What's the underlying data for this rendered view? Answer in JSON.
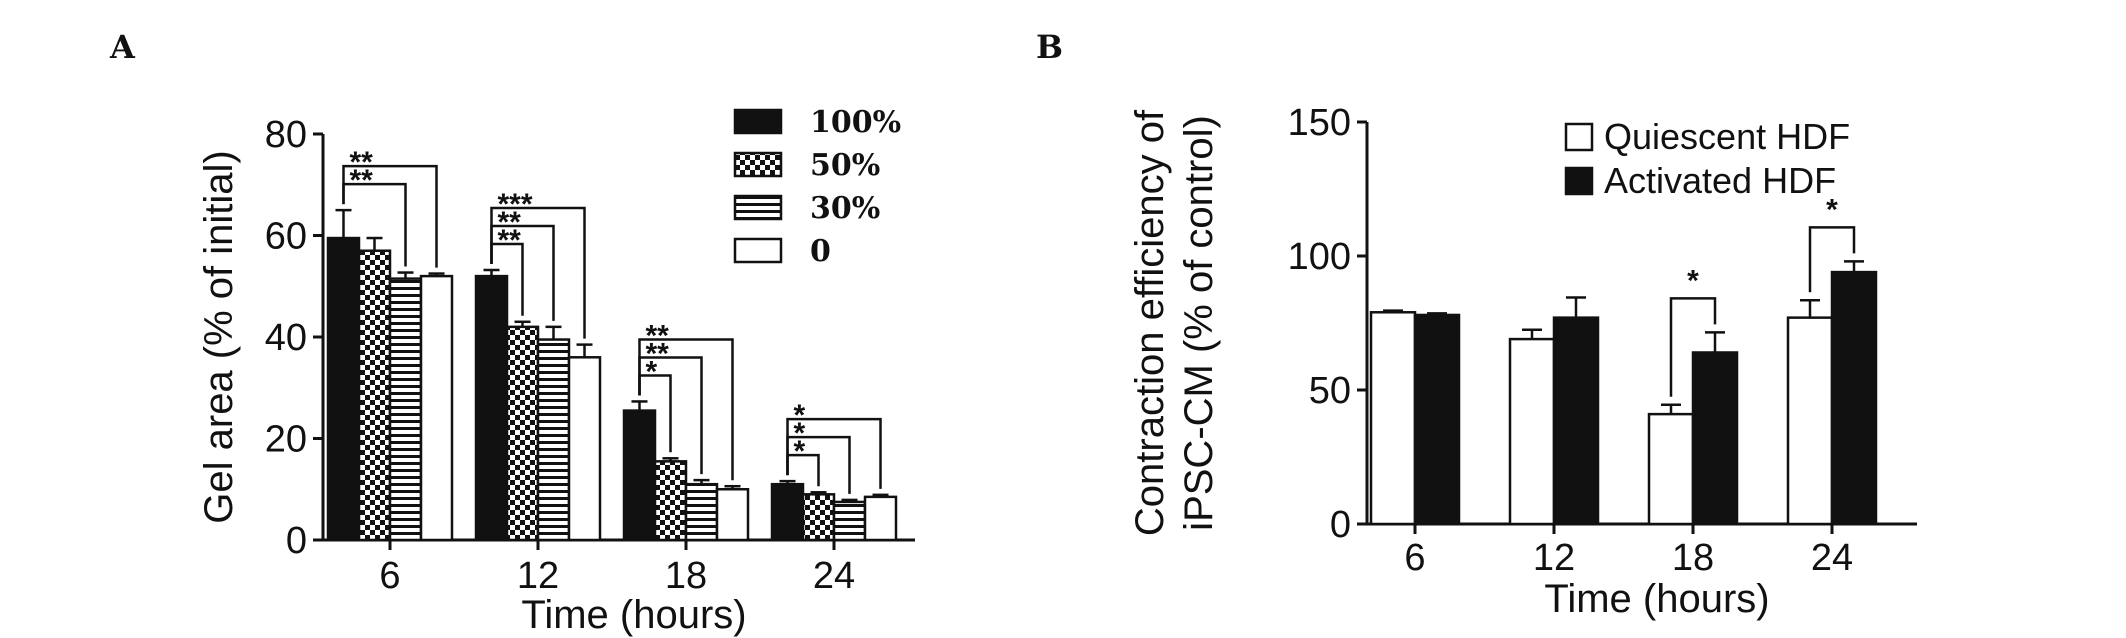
{
  "chart_data": [
    {
      "panel": "A",
      "type": "bar",
      "xlabel": "Time (hours)",
      "ylabel": "Gel area (% of initial)",
      "ylim": [
        0,
        80
      ],
      "yticks": [
        0,
        20,
        40,
        60,
        80
      ],
      "categories": [
        "6",
        "12",
        "18",
        "24"
      ],
      "series": [
        {
          "name": "100%",
          "values": [
            59.5,
            52,
            25.5,
            11
          ],
          "errors": [
            5.5,
            1.2,
            1.8,
            0.6
          ],
          "pattern": "solid-black"
        },
        {
          "name": "50%",
          "values": [
            57,
            42,
            15.5,
            9
          ],
          "errors": [
            2.5,
            1.0,
            0.6,
            0.4
          ],
          "pattern": "checker"
        },
        {
          "name": "30%",
          "values": [
            51.5,
            39.5,
            11,
            7.5
          ],
          "errors": [
            1.2,
            2.5,
            0.8,
            0.4
          ],
          "pattern": "horizontal-stripes"
        },
        {
          "name": "0",
          "values": [
            52,
            36,
            10,
            8.5
          ],
          "errors": [
            0.5,
            2.5,
            0.6,
            0.4
          ],
          "pattern": "white"
        }
      ],
      "significance": [
        {
          "category": "6",
          "from": 0,
          "to": 3,
          "label": "**",
          "level": 1
        },
        {
          "category": "6",
          "from": 0,
          "to": 2,
          "label": "**",
          "level": 0
        },
        {
          "category": "12",
          "from": 0,
          "to": 3,
          "label": "***",
          "level": 2
        },
        {
          "category": "12",
          "from": 0,
          "to": 2,
          "label": "**",
          "level": 1
        },
        {
          "category": "12",
          "from": 0,
          "to": 1,
          "label": "**",
          "level": 0
        },
        {
          "category": "18",
          "from": 0,
          "to": 3,
          "label": "**",
          "level": 2
        },
        {
          "category": "18",
          "from": 0,
          "to": 2,
          "label": "**",
          "level": 1
        },
        {
          "category": "18",
          "from": 0,
          "to": 1,
          "label": "*",
          "level": 0
        },
        {
          "category": "24",
          "from": 0,
          "to": 3,
          "label": "*",
          "level": 2
        },
        {
          "category": "24",
          "from": 0,
          "to": 2,
          "label": "*",
          "level": 1
        },
        {
          "category": "24",
          "from": 0,
          "to": 1,
          "label": "*",
          "level": 0
        }
      ],
      "legend_position": "top-right"
    },
    {
      "panel": "B",
      "type": "bar",
      "xlabel": "Time (hours)",
      "ylabel_line1": "Contraction efficiency of",
      "ylabel_line2": "iPSC-CM (% of control)",
      "ylim": [
        0,
        150
      ],
      "yticks": [
        0,
        50,
        100,
        150
      ],
      "categories": [
        "6",
        "12",
        "18",
        "24"
      ],
      "series": [
        {
          "name": "Quiescent HDF",
          "values": [
            79,
            69,
            41,
            77
          ],
          "errors": [
            0.6,
            3.5,
            3.5,
            6.5
          ],
          "pattern": "white"
        },
        {
          "name": "Activated HDF",
          "values": [
            78,
            77,
            64,
            94
          ],
          "errors": [
            0.6,
            7.5,
            7.5,
            4.0
          ],
          "pattern": "solid-black"
        }
      ],
      "significance": [
        {
          "category": "18",
          "from": 0,
          "to": 1,
          "label": "*"
        },
        {
          "category": "24",
          "from": 0,
          "to": 1,
          "label": "*"
        }
      ],
      "legend_position": "top-right"
    }
  ]
}
